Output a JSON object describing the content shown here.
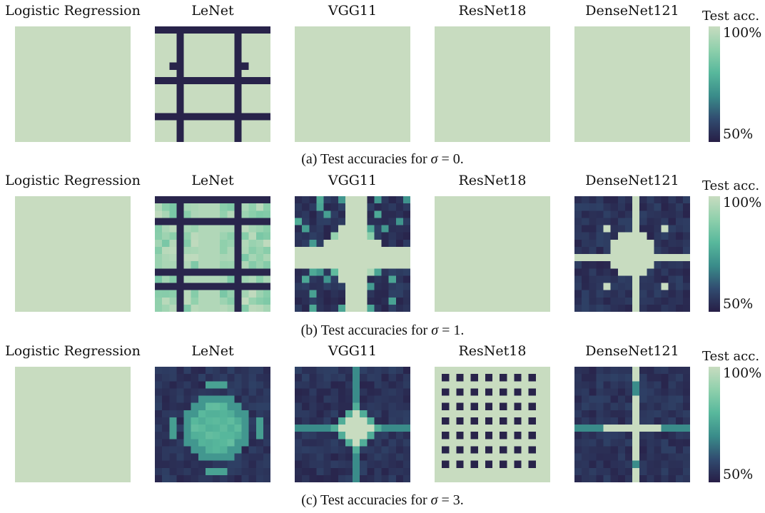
{
  "chart_data": [
    {
      "type": "heatmap",
      "caption": {
        "prefix": "(a) Test accuracies for ",
        "sigma": "σ",
        "suffix": " = 0."
      },
      "colorbar": {
        "title": "Test acc.",
        "max_label": "100%",
        "min_label": "50%",
        "range": [
          50,
          100
        ]
      },
      "panels": [
        {
          "title": "Logistic Regression",
          "pattern": "uniform"
        },
        {
          "title": "LeNet",
          "pattern": "lenet_grid"
        },
        {
          "title": "VGG11",
          "pattern": "uniform"
        },
        {
          "title": "ResNet18",
          "pattern": "uniform"
        },
        {
          "title": "DenseNet121",
          "pattern": "uniform"
        }
      ]
    },
    {
      "type": "heatmap",
      "caption": {
        "prefix": "(b) Test accuracies for ",
        "sigma": "σ",
        "suffix": " = 1."
      },
      "colorbar": {
        "title": "Test acc.",
        "max_label": "100%",
        "min_label": "50%",
        "range": [
          50,
          100
        ]
      },
      "panels": [
        {
          "title": "Logistic Regression",
          "pattern": "uniform"
        },
        {
          "title": "LeNet",
          "pattern": "lenet_soft"
        },
        {
          "title": "VGG11",
          "pattern": "vgg_cross"
        },
        {
          "title": "ResNet18",
          "pattern": "uniform"
        },
        {
          "title": "DenseNet121",
          "pattern": "dense_cross"
        }
      ]
    },
    {
      "type": "heatmap",
      "caption": {
        "prefix": "(c) Test accuracies for ",
        "sigma": "σ",
        "suffix": " = 3."
      },
      "colorbar": {
        "title": "Test acc.",
        "max_label": "100%",
        "min_label": "50%",
        "range": [
          50,
          100
        ]
      },
      "panels": [
        {
          "title": "Logistic Regression",
          "pattern": "uniform"
        },
        {
          "title": "LeNet",
          "pattern": "lenet_blob"
        },
        {
          "title": "VGG11",
          "pattern": "vgg_star"
        },
        {
          "title": "ResNet18",
          "pattern": "resnet_dots"
        },
        {
          "title": "DenseNet121",
          "pattern": "dense_line"
        }
      ]
    }
  ]
}
